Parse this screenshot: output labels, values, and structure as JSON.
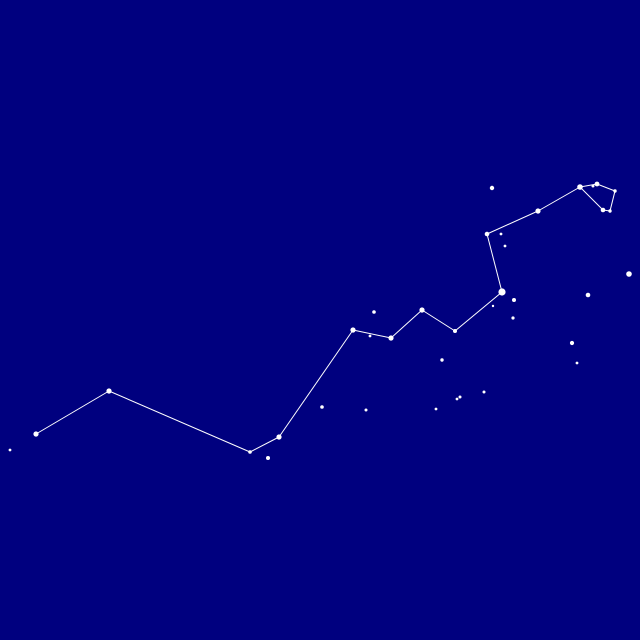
{
  "scene": {
    "subject": "constellation-star-chart",
    "background_color": "#00007f",
    "star_color": "#ffffff",
    "line_color": "#ffffff"
  }
}
